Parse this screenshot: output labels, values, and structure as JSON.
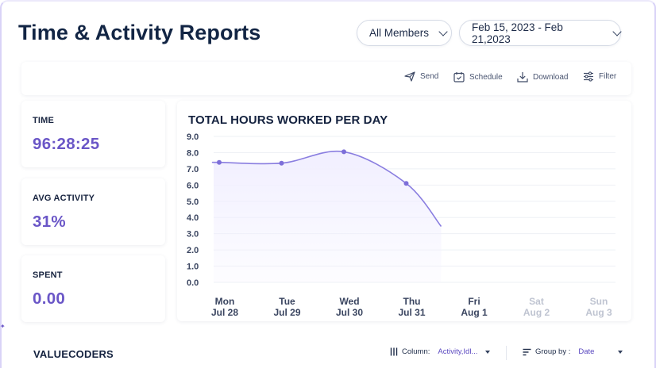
{
  "header": {
    "title": "Time & Activity Reports",
    "members_filter": "All Members",
    "date_range": "Feb 15, 2023 - Feb 21,2023"
  },
  "toolbar": {
    "send": "Send",
    "schedule": "Schedule",
    "download": "Download",
    "filter": "Filter"
  },
  "stats": [
    {
      "label": "TIME",
      "value": "96:28:25"
    },
    {
      "label": "AVG ACTIVITY",
      "value": "31%"
    },
    {
      "label": "SPENT",
      "value": "0.00"
    }
  ],
  "chart_data": {
    "type": "area",
    "title": "TOTAL HOURS WORKED PER DAY",
    "xlabel": "",
    "ylabel": "",
    "ylim": [
      0,
      9
    ],
    "yticks": [
      "9.0",
      "8.0",
      "7.0",
      "6.0",
      "5.0",
      "4.0",
      "3.0",
      "2.0",
      "1.0",
      "0.0"
    ],
    "categories": [
      {
        "day": "Mon",
        "date": "Jul 28",
        "muted": false
      },
      {
        "day": "Tue",
        "date": "Jul 29",
        "muted": false
      },
      {
        "day": "Wed",
        "date": "Jul 30",
        "muted": false
      },
      {
        "day": "Thu",
        "date": "Jul 31",
        "muted": false
      },
      {
        "day": "Fri",
        "date": "Aug 1",
        "muted": false
      },
      {
        "day": "Sat",
        "date": "Aug 2",
        "muted": true
      },
      {
        "day": "Sun",
        "date": "Aug 3",
        "muted": true
      }
    ],
    "points": [
      {
        "x_index": 0,
        "y": 7.4
      },
      {
        "x_index": 1,
        "y": 7.35
      },
      {
        "x_index": 2,
        "y": 8.05
      },
      {
        "x_index": 3,
        "y": 6.1
      }
    ],
    "line_end_value": 3.45,
    "grid": true,
    "colors": {
      "line": "#8a7ee0",
      "fill": "#f1efff",
      "point": "#7d6fd9",
      "grid": "#eef0f5"
    }
  },
  "footer": {
    "title": "VALUECODERS",
    "column_label": "Column:",
    "column_value": "Activity,Idl...",
    "group_label": "Group by :",
    "group_value": "Date"
  }
}
